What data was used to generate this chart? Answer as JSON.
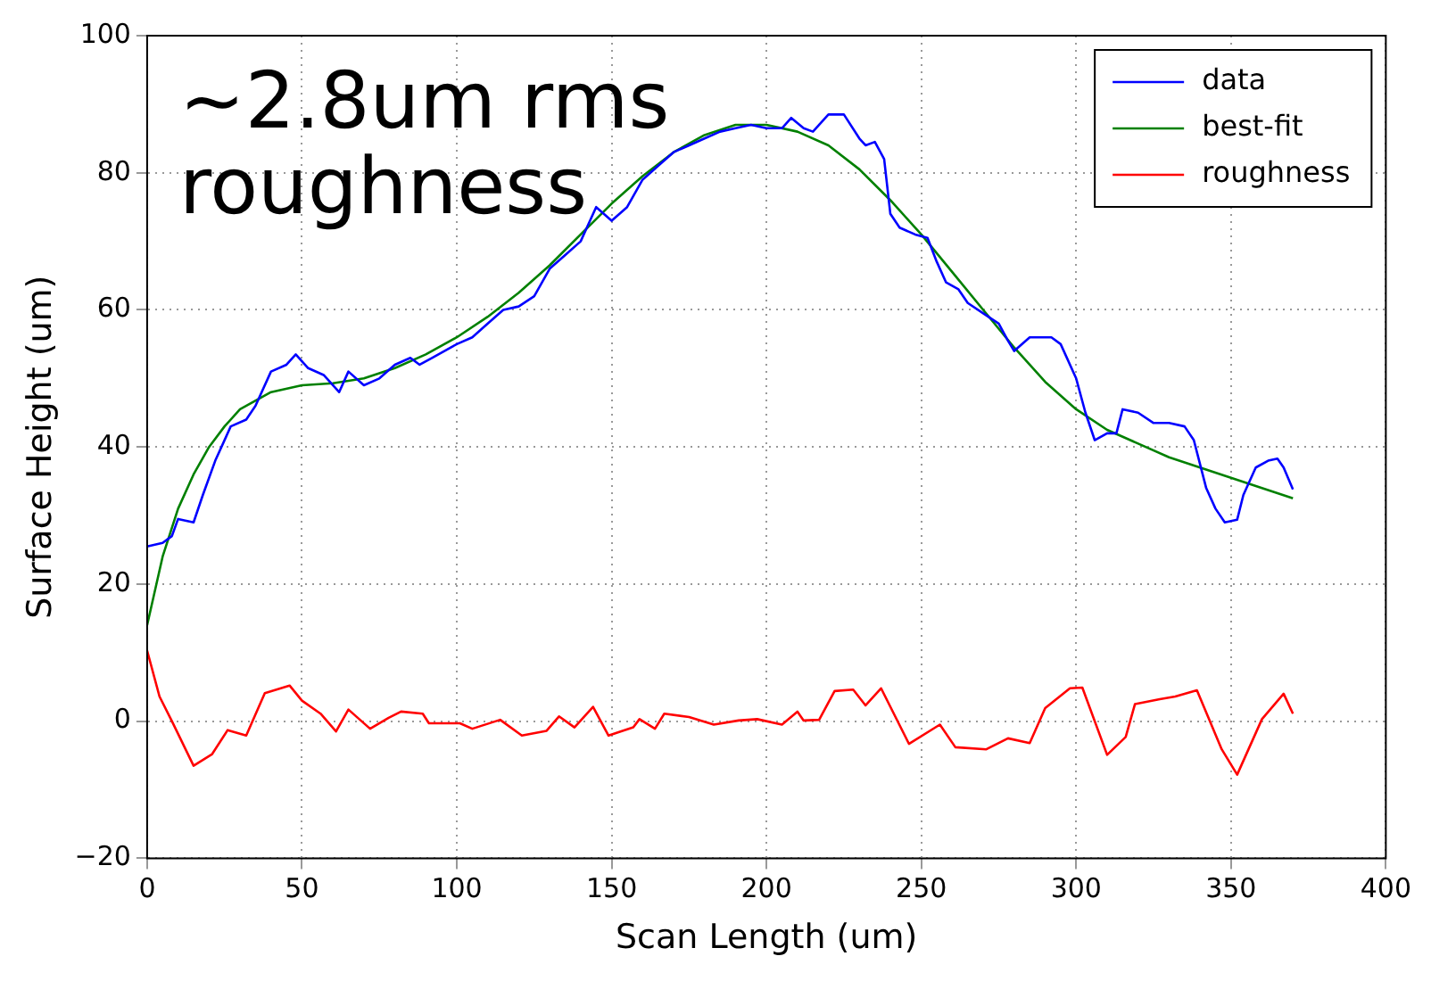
{
  "chart_data": {
    "type": "line",
    "xlabel": "Scan Length (um)",
    "ylabel": "Surface Height (um)",
    "xlim": [
      0,
      400
    ],
    "xticks": [
      0,
      50,
      100,
      150,
      200,
      250,
      300,
      350,
      400
    ],
    "ylim": [
      -20,
      100
    ],
    "yticks": [
      -20,
      0,
      20,
      40,
      60,
      80,
      100
    ],
    "grid": true,
    "legend": "top right",
    "marker": "none",
    "line_style": "solid",
    "annotations": [
      "~2.8um rms\nroughness"
    ],
    "series": [
      {
        "name": "data",
        "color": "#0000ff",
        "x": [
          0,
          5,
          8,
          10,
          15,
          18,
          22,
          27,
          32,
          35,
          40,
          45,
          48,
          52,
          57,
          62,
          65,
          70,
          75,
          80,
          85,
          88,
          92,
          100,
          105,
          110,
          115,
          120,
          125,
          130,
          135,
          140,
          145,
          150,
          155,
          160,
          165,
          170,
          175,
          180,
          185,
          190,
          195,
          200,
          205,
          208,
          212,
          215,
          220,
          225,
          230,
          232,
          235,
          238,
          240,
          243,
          248,
          252,
          255,
          258,
          262,
          265,
          270,
          275,
          278,
          280,
          285,
          292,
          295,
          300,
          303,
          306,
          310,
          313,
          315,
          320,
          325,
          330,
          335,
          338,
          342,
          345,
          348,
          352,
          354,
          358,
          362,
          365,
          367,
          370
        ],
        "values": [
          25.5,
          26,
          27,
          29.5,
          29,
          33,
          38,
          43,
          44,
          46,
          51,
          52,
          53.5,
          51.5,
          50.5,
          48,
          51,
          49,
          50,
          52,
          53,
          52,
          53,
          55,
          56,
          58,
          60,
          60.5,
          62,
          66,
          68,
          70,
          75,
          73,
          75,
          79,
          81,
          83,
          84,
          85,
          86,
          86.5,
          87,
          86.5,
          86.5,
          88,
          86.5,
          86,
          88.5,
          88.5,
          85,
          84,
          84.5,
          82,
          74,
          72,
          71,
          70.5,
          67,
          64,
          63,
          61,
          59.5,
          58,
          55.5,
          54,
          56,
          56,
          55,
          50,
          45,
          41,
          42,
          42,
          45.5,
          45,
          43.5,
          43.5,
          43,
          41,
          34,
          31,
          29,
          29.4,
          33,
          37,
          38,
          38.3,
          37,
          33.8
        ]
      },
      {
        "name": "best-fit",
        "color": "#008000",
        "x": [
          0,
          5,
          10,
          15,
          20,
          25,
          30,
          40,
          50,
          60,
          70,
          80,
          90,
          100,
          110,
          120,
          130,
          140,
          150,
          160,
          170,
          180,
          190,
          200,
          210,
          220,
          230,
          240,
          250,
          260,
          270,
          280,
          290,
          300,
          310,
          320,
          330,
          340,
          350,
          360,
          370
        ],
        "values": [
          14,
          24,
          31,
          36,
          40,
          43,
          45.5,
          48,
          49,
          49.3,
          50,
          51.5,
          53.5,
          56,
          59,
          62.5,
          66.5,
          71,
          75.5,
          79.5,
          83,
          85.5,
          87,
          87,
          86,
          84,
          80.5,
          76,
          71,
          65.5,
          60,
          54.5,
          49.5,
          45.5,
          42.5,
          40.5,
          38.5,
          37,
          35.5,
          34,
          32.5
        ]
      },
      {
        "name": "roughness",
        "color": "#ff0000",
        "x": [
          0,
          4,
          8,
          15,
          21,
          26,
          32,
          38,
          46,
          50,
          56,
          61,
          65,
          72,
          78,
          82,
          89,
          91,
          101,
          105,
          114,
          121,
          129,
          133,
          138,
          144,
          149,
          157,
          159,
          164,
          167,
          175,
          183,
          191,
          197,
          205,
          210,
          212,
          217,
          222,
          228,
          232,
          237,
          246,
          256,
          261,
          271,
          278,
          285,
          290,
          298,
          302,
          310,
          316,
          319,
          327,
          332,
          339,
          347,
          352,
          360,
          367,
          370
        ],
        "values": [
          10.3,
          3.6,
          0,
          -6.5,
          -4.8,
          -1.3,
          -2.1,
          4.1,
          5.2,
          3,
          1.1,
          -1.5,
          1.7,
          -1.1,
          0.5,
          1.4,
          1.1,
          -0.3,
          -0.3,
          -1.1,
          0.2,
          -2.1,
          -1.4,
          0.7,
          -0.9,
          2.1,
          -2.1,
          -0.9,
          0.3,
          -1.1,
          1.1,
          0.6,
          -0.5,
          0.1,
          0.3,
          -0.5,
          1.4,
          0.1,
          0.2,
          4.4,
          4.6,
          2.3,
          4.8,
          -3.3,
          -0.5,
          -3.8,
          -4.1,
          -2.5,
          -3.2,
          1.9,
          4.8,
          4.9,
          -4.9,
          -2.3,
          2.5,
          3.2,
          3.6,
          4.5,
          -4.1,
          -7.8,
          0.3,
          4,
          1.1
        ]
      }
    ]
  }
}
